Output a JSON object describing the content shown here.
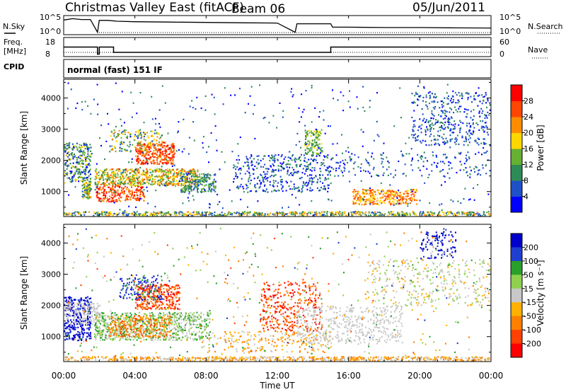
{
  "header": {
    "station": "Christmas Valley East (fitACF)",
    "beam": "Beam 06",
    "date": "05/Jun/2011"
  },
  "strips": {
    "nsky_label": "N.Sky",
    "nsky_ticks": [
      "10^5",
      "10^0"
    ],
    "nsearch_label": "N.Search",
    "nsearch_ticks": [
      "10^5",
      "10^0"
    ],
    "freq_label_1": "Freq.",
    "freq_label_2": "[MHz]",
    "freq_ticks": [
      "18",
      "8"
    ],
    "nave_label": "Nave",
    "nave_ticks": [
      "60",
      "0"
    ],
    "cpid_label": "CPID",
    "cpid_value": "normal (fast) 151 IF"
  },
  "time_axis": {
    "label": "Time UT",
    "ticks": [
      "00:00",
      "04:00",
      "08:00",
      "12:00",
      "16:00",
      "20:00",
      "00:00"
    ]
  },
  "colors": {
    "power": [
      "#0000ff",
      "#1e50c8",
      "#2e8b57",
      "#66b032",
      "#ffd700",
      "#ff8c00",
      "#ff4500",
      "#ff0000"
    ],
    "velocity": [
      "#0000cc",
      "#1f3fd0",
      "#2aa02a",
      "#8fd14f",
      "#c8c8c8",
      "#ffb000",
      "#ff8000",
      "#ff4000",
      "#ff0000"
    ]
  },
  "chart_data": [
    {
      "type": "line",
      "name": "nsky",
      "x_range": [
        0,
        24
      ],
      "x": [
        0,
        0.5,
        1.0,
        1.5,
        1.9,
        2.0,
        2.5,
        3.0,
        4.0,
        6.0,
        8.0,
        10.0,
        12.0,
        13.0,
        13.1,
        14.0,
        15.0,
        15.1,
        16.0,
        18.0,
        20.0,
        22.0,
        24.0
      ],
      "y": [
        0.82,
        0.9,
        0.85,
        0.85,
        0.1,
        0.8,
        0.8,
        0.75,
        0.72,
        0.7,
        0.68,
        0.66,
        0.64,
        0.1,
        0.6,
        0.6,
        0.6,
        0.4,
        0.4,
        0.38,
        0.38,
        0.36,
        0.35
      ]
    },
    {
      "type": "line",
      "name": "frequency",
      "ylabel": "[MHz]",
      "ylim": [
        8,
        18
      ],
      "x": [
        0,
        1.9,
        1.9,
        2.0,
        2.0,
        2.8,
        2.8,
        15.0,
        15.0,
        24.0
      ],
      "y": [
        13,
        13,
        9,
        9,
        13,
        13,
        10,
        10,
        13,
        13
      ]
    },
    {
      "type": "scatter",
      "name": "power",
      "ylabel": "Slant Range [km]",
      "xlabel": "Time UT",
      "legend_label": "Power [dB]",
      "ylim": [
        200,
        4600
      ],
      "x_range": [
        0,
        24
      ],
      "colorbar_ticks": [
        "4",
        "8",
        "12",
        "16",
        "20",
        "24",
        "28"
      ],
      "colorbar_range": [
        0,
        32
      ]
    },
    {
      "type": "scatter",
      "name": "velocity",
      "ylabel": "Slant Range [km]",
      "xlabel": "Time UT",
      "legend_label": "Velocity [m s⁻¹]",
      "ylim": [
        200,
        4600
      ],
      "x_range": [
        0,
        24
      ],
      "colorbar_ticks": [
        "200",
        "100",
        "50",
        "15",
        "-15",
        "-50",
        "-100",
        "-200"
      ]
    }
  ]
}
